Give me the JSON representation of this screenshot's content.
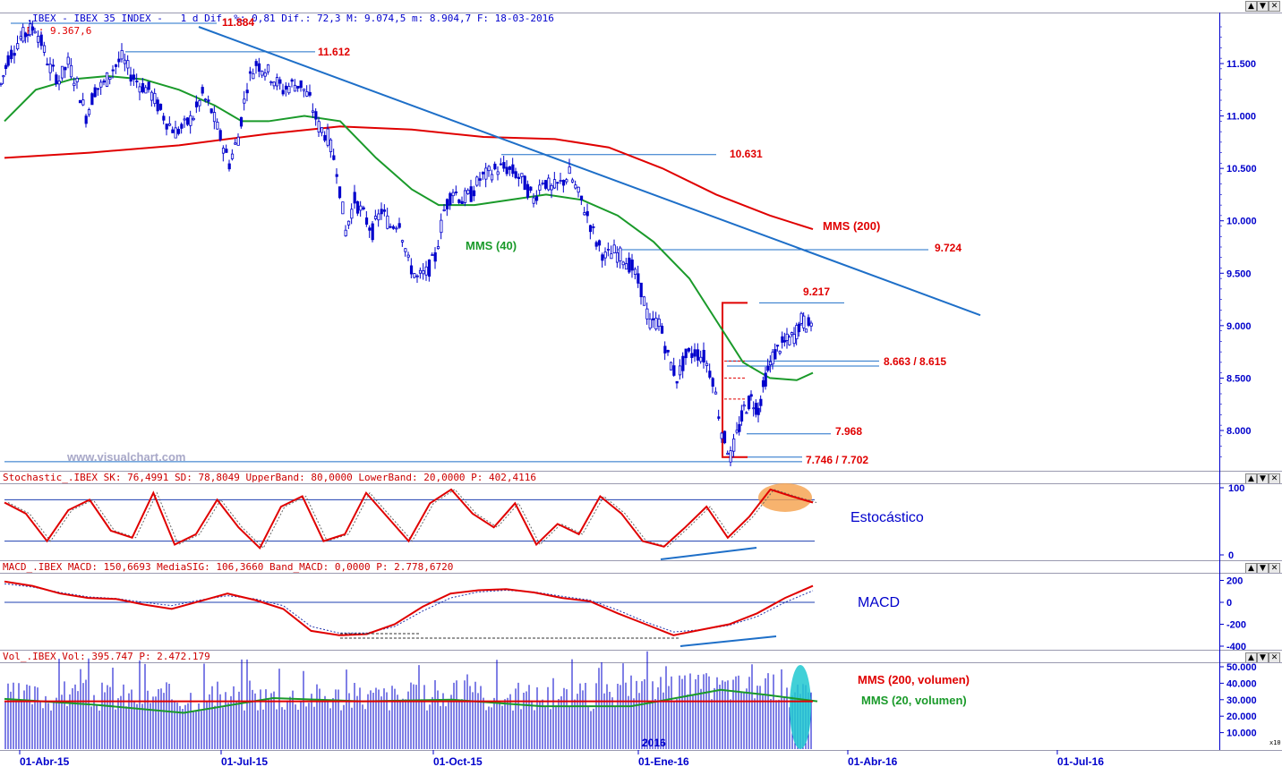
{
  "panels": {
    "price_header": {
      "prefix": ".IBEX - IBEX 35 INDEX -   1 d Dif. %: 0,81 Dif.: 72,3 M: 9.074,5 m: 8.904,7 F: 18-03-2016",
      "suffix": "P : 9.367,6"
    },
    "stoch_header": {
      "text": "Stochastic_.IBEX SK: 76,4991 SD: 78,8049 UpperBand: 80,0000 LowerBand: 20,0000 P: 402,4116"
    },
    "macd_header": {
      "text": "MACD_.IBEX MACD: 150,6693 MediaSIG: 106,3660 Band_MACD: 0,0000 P: 2.778,6720"
    },
    "vol_header": {
      "text": "Vol_.IBEX Vol: 395.747 P: 2.472.179"
    }
  },
  "window_buttons": {
    "up": "▲",
    "down": "▼",
    "close": "✕"
  },
  "watermark": "www.visualchart.com",
  "annotations": {
    "mms40": "MMS (40)",
    "mms200": "MMS (200)",
    "stoch_label": "Estocástico",
    "macd_label": "MACD",
    "vol_mms200": "MMS (200, volumen)",
    "vol_mms20": "MMS (20, volumen)",
    "year_marker": "2016",
    "vol_unit": "x10"
  },
  "levels": {
    "l11884": "11.884",
    "l11612": "11.612",
    "l10631": "10.631",
    "l9724": "9.724",
    "l9217": "9.217",
    "l8663": "8.663 / 8.615",
    "l7968": "7.968",
    "l7746": "7.746 / 7.702"
  },
  "axes": {
    "price_ticks": [
      "11.500",
      "11.000",
      "10.500",
      "10.000",
      "9.500",
      "9.000",
      "8.500",
      "8.000"
    ],
    "stoch_ticks": [
      "100",
      "0"
    ],
    "macd_ticks": [
      "200",
      "0",
      "-200",
      "-400"
    ],
    "vol_ticks": [
      "50.000",
      "40.000",
      "30.000",
      "20.000",
      "10.000"
    ],
    "x_ticks": [
      "01-Abr-15",
      "01-Jul-15",
      "01-Oct-15",
      "01-Ene-16",
      "01-Abr-16",
      "01-Jul-16"
    ]
  },
  "colors": {
    "price_up": "#ffffff",
    "price_candle": "#0000cc",
    "mms40": "#1a9a2a",
    "mms200": "#e00000",
    "trendline": "#1e6fc8",
    "levels": "#e00000",
    "stoch_main": "#e00000",
    "stoch_band": "#1e3fb0",
    "highlight_orange": "#f5a04a",
    "highlight_cyan": "#20c8d0"
  },
  "chart_data": [
    {
      "type": "candlestick",
      "title": "IBEX 35 INDEX",
      "ylim": [
        7650,
        11950
      ],
      "x_ticks": [
        "01-Abr-15",
        "01-Jul-15",
        "01-Oct-15",
        "01-Ene-16",
        "01-Abr-16",
        "01-Jul-16"
      ],
      "close_series": {
        "name": "IBEX 35",
        "points": [
          [
            0,
            11300
          ],
          [
            8,
            11550
          ],
          [
            15,
            11650
          ],
          [
            22,
            11750
          ],
          [
            30,
            11800
          ],
          [
            38,
            11850
          ],
          [
            45,
            11700
          ],
          [
            55,
            11450
          ],
          [
            65,
            11350
          ],
          [
            75,
            11500
          ],
          [
            85,
            11300
          ],
          [
            95,
            11000
          ],
          [
            105,
            11250
          ],
          [
            115,
            11300
          ],
          [
            125,
            11450
          ],
          [
            135,
            11550
          ],
          [
            145,
            11400
          ],
          [
            155,
            11300
          ],
          [
            165,
            11250
          ],
          [
            175,
            11100
          ],
          [
            185,
            10950
          ],
          [
            195,
            10850
          ],
          [
            205,
            10900
          ],
          [
            215,
            11000
          ],
          [
            225,
            11200
          ],
          [
            235,
            11050
          ],
          [
            245,
            10800
          ],
          [
            255,
            10550
          ],
          [
            265,
            10800
          ],
          [
            275,
            11300
          ],
          [
            285,
            11500
          ],
          [
            295,
            11450
          ],
          [
            305,
            11350
          ],
          [
            315,
            11250
          ],
          [
            325,
            11300
          ],
          [
            335,
            11300
          ],
          [
            345,
            11150
          ],
          [
            355,
            10900
          ],
          [
            365,
            10800
          ],
          [
            375,
            10500
          ],
          [
            385,
            9900
          ],
          [
            395,
            10200
          ],
          [
            405,
            10050
          ],
          [
            415,
            9900
          ],
          [
            425,
            10100
          ],
          [
            435,
            9950
          ],
          [
            445,
            10000
          ],
          [
            455,
            9600
          ],
          [
            465,
            9450
          ],
          [
            475,
            9500
          ],
          [
            485,
            9650
          ],
          [
            495,
            10100
          ],
          [
            505,
            10300
          ],
          [
            515,
            10200
          ],
          [
            525,
            10250
          ],
          [
            535,
            10400
          ],
          [
            545,
            10450
          ],
          [
            555,
            10500
          ],
          [
            565,
            10500
          ],
          [
            575,
            10450
          ],
          [
            585,
            10350
          ],
          [
            595,
            10200
          ],
          [
            605,
            10400
          ],
          [
            615,
            10300
          ],
          [
            625,
            10350
          ],
          [
            635,
            10450
          ],
          [
            645,
            10250
          ],
          [
            655,
            10050
          ],
          [
            665,
            9800
          ],
          [
            675,
            9650
          ],
          [
            685,
            9700
          ],
          [
            695,
            9650
          ],
          [
            705,
            9550
          ],
          [
            715,
            9350
          ],
          [
            725,
            9000
          ],
          [
            735,
            9050
          ],
          [
            745,
            8700
          ],
          [
            755,
            8500
          ],
          [
            765,
            8700
          ],
          [
            775,
            8750
          ],
          [
            785,
            8700
          ],
          [
            795,
            8500
          ],
          [
            805,
            8000
          ],
          [
            815,
            7750
          ],
          [
            822,
            7950
          ],
          [
            830,
            8200
          ],
          [
            838,
            8300
          ],
          [
            846,
            8200
          ],
          [
            854,
            8500
          ],
          [
            862,
            8700
          ],
          [
            870,
            8800
          ],
          [
            878,
            8850
          ],
          [
            886,
            8900
          ],
          [
            894,
            9050
          ],
          [
            902,
            9000
          ],
          [
            908,
            9074
          ]
        ]
      },
      "mms40": [
        [
          5,
          10950
        ],
        [
          40,
          11250
        ],
        [
          80,
          11350
        ],
        [
          120,
          11380
        ],
        [
          160,
          11350
        ],
        [
          200,
          11250
        ],
        [
          240,
          11100
        ],
        [
          270,
          10950
        ],
        [
          300,
          10950
        ],
        [
          340,
          11000
        ],
        [
          380,
          10950
        ],
        [
          420,
          10600
        ],
        [
          460,
          10300
        ],
        [
          490,
          10150
        ],
        [
          530,
          10150
        ],
        [
          570,
          10200
        ],
        [
          610,
          10250
        ],
        [
          650,
          10200
        ],
        [
          690,
          10050
        ],
        [
          730,
          9800
        ],
        [
          770,
          9450
        ],
        [
          800,
          9050
        ],
        [
          830,
          8650
        ],
        [
          860,
          8500
        ],
        [
          890,
          8480
        ],
        [
          908,
          8550
        ]
      ],
      "mms200": [
        [
          5,
          10600
        ],
        [
          100,
          10650
        ],
        [
          200,
          10720
        ],
        [
          300,
          10830
        ],
        [
          380,
          10900
        ],
        [
          460,
          10870
        ],
        [
          540,
          10800
        ],
        [
          620,
          10780
        ],
        [
          680,
          10700
        ],
        [
          740,
          10500
        ],
        [
          800,
          10250
        ],
        [
          860,
          10050
        ],
        [
          908,
          9920
        ]
      ],
      "trendline": {
        "from": [
          222,
          11850
        ],
        "to": [
          1095,
          9100
        ]
      }
    },
    {
      "type": "line",
      "title": "Stochastic",
      "ylim": [
        0,
        100
      ],
      "bands": [
        80,
        20
      ],
      "values_sk": [
        76,
        60,
        20,
        65,
        80,
        35,
        25,
        90,
        15,
        30,
        80,
        40,
        10,
        70,
        85,
        20,
        30,
        90,
        55,
        20,
        75,
        95,
        60,
        40,
        75,
        15,
        45,
        30,
        85,
        60,
        20,
        12,
        40,
        70,
        25,
        55,
        95,
        85,
        76
      ]
    },
    {
      "type": "line",
      "title": "MACD",
      "ylim": [
        -450,
        250
      ],
      "values_macd": [
        190,
        150,
        80,
        40,
        30,
        -20,
        -60,
        10,
        80,
        20,
        -60,
        -260,
        -300,
        -290,
        -200,
        -40,
        80,
        110,
        120,
        90,
        40,
        10,
        -100,
        -200,
        -300,
        -250,
        -200,
        -100,
        40,
        150
      ],
      "values_signal": [
        170,
        140,
        90,
        50,
        35,
        0,
        -30,
        20,
        60,
        30,
        -30,
        -220,
        -280,
        -280,
        -220,
        -80,
        40,
        95,
        110,
        95,
        55,
        20,
        -70,
        -180,
        -270,
        -250,
        -210,
        -130,
        0,
        106
      ]
    },
    {
      "type": "bar",
      "title": "Volume",
      "ylim": [
        0,
        55000
      ],
      "mms200_vol": 29000,
      "mms20_vol_points": [
        [
          0,
          30500
        ],
        [
          100,
          27000
        ],
        [
          200,
          22000
        ],
        [
          300,
          31000
        ],
        [
          400,
          29000
        ],
        [
          500,
          30000
        ],
        [
          600,
          26000
        ],
        [
          700,
          26000
        ],
        [
          800,
          36000
        ],
        [
          850,
          33000
        ],
        [
          908,
          29000
        ]
      ]
    }
  ]
}
